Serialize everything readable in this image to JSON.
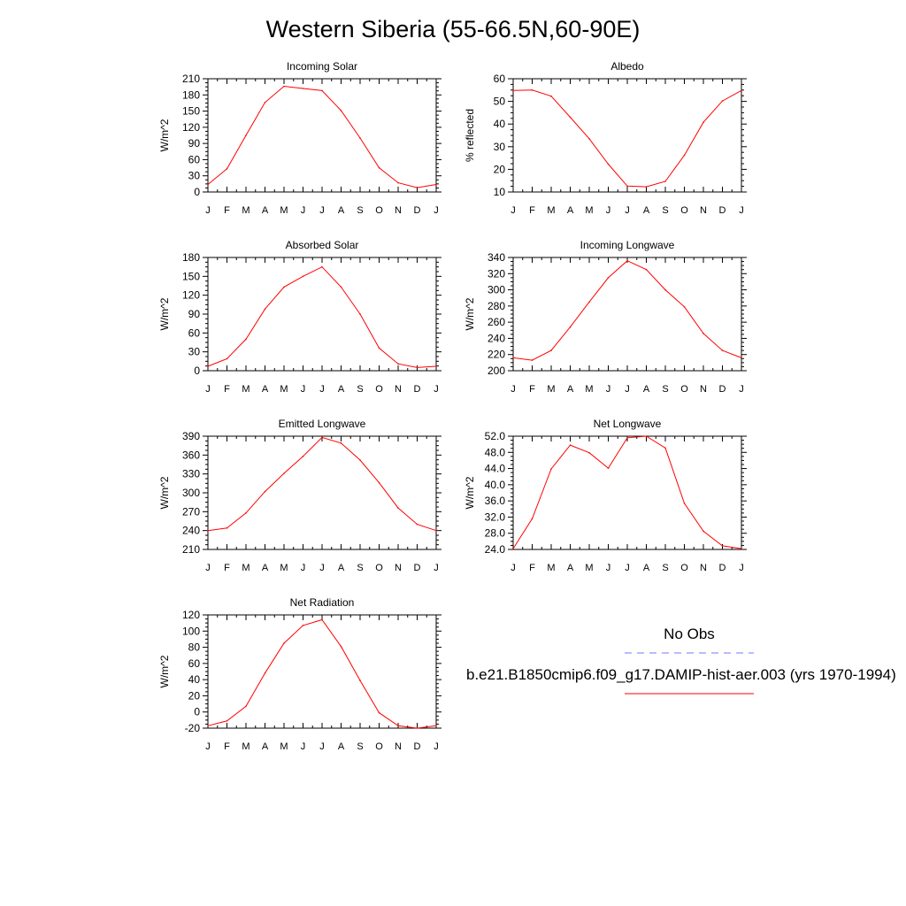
{
  "title": "Western Siberia (55-66.5N,60-90E)",
  "legend": {
    "obs_label": "No Obs",
    "obs_color": "#7777ff",
    "model_label": "b.e21.B1850cmip6.f09_g17.DAMIP-hist-aer.003 (yrs 1970-1994)",
    "model_color": "#ff0000"
  },
  "chart_data": [
    {
      "type": "line",
      "title": "Incoming Solar",
      "ylabel": "W/m^2",
      "x": [
        "J",
        "F",
        "M",
        "A",
        "M",
        "J",
        "J",
        "A",
        "S",
        "O",
        "N",
        "D",
        "J"
      ],
      "ylim": [
        0,
        210
      ],
      "yticks": [
        "0",
        "30",
        "60",
        "90",
        "120",
        "150",
        "180",
        "210"
      ],
      "series": [
        {
          "values": [
            14,
            43,
            105,
            166,
            196,
            192,
            188,
            151,
            100,
            45,
            17,
            8,
            14
          ]
        }
      ]
    },
    {
      "type": "line",
      "title": "Albedo",
      "ylabel": "% reflected",
      "x": [
        "J",
        "F",
        "M",
        "A",
        "M",
        "J",
        "J",
        "A",
        "S",
        "O",
        "N",
        "D",
        "J"
      ],
      "ylim": [
        10,
        60
      ],
      "yticks": [
        "10",
        "20",
        "30",
        "40",
        "50",
        "60"
      ],
      "series": [
        {
          "values": [
            54.8,
            55,
            52.3,
            43,
            33.5,
            22.3,
            12.6,
            12.3,
            14.7,
            26.2,
            40.8,
            50.2,
            54.8
          ]
        }
      ]
    },
    {
      "type": "line",
      "title": "Absorbed Solar",
      "ylabel": "W/m^2",
      "x": [
        "J",
        "F",
        "M",
        "A",
        "M",
        "J",
        "J",
        "A",
        "S",
        "O",
        "N",
        "D",
        "J"
      ],
      "ylim": [
        0,
        180
      ],
      "yticks": [
        "0",
        "30",
        "60",
        "90",
        "120",
        "150",
        "180"
      ],
      "series": [
        {
          "values": [
            7,
            19,
            50,
            98,
            133,
            150,
            165,
            133,
            90,
            36,
            11,
            5,
            7
          ]
        }
      ]
    },
    {
      "type": "line",
      "title": "Incoming Longwave",
      "ylabel": "W/m^2",
      "x": [
        "J",
        "F",
        "M",
        "A",
        "M",
        "J",
        "J",
        "A",
        "S",
        "O",
        "N",
        "D",
        "J"
      ],
      "ylim": [
        200,
        340
      ],
      "yticks": [
        "200",
        "220",
        "240",
        "260",
        "280",
        "300",
        "320",
        "340"
      ],
      "series": [
        {
          "values": [
            216,
            213,
            225,
            254,
            285,
            315,
            336,
            325,
            300,
            279,
            246,
            225,
            216
          ]
        }
      ]
    },
    {
      "type": "line",
      "title": "Emitted Longwave",
      "ylabel": "W/m^2",
      "x": [
        "J",
        "F",
        "M",
        "A",
        "M",
        "J",
        "J",
        "A",
        "S",
        "O",
        "N",
        "D",
        "J"
      ],
      "ylim": [
        210,
        390
      ],
      "yticks": [
        "210",
        "240",
        "270",
        "300",
        "330",
        "360",
        "390"
      ],
      "series": [
        {
          "values": [
            240,
            244,
            268,
            302,
            331,
            358,
            388,
            379,
            352,
            316,
            276,
            250,
            240
          ]
        }
      ]
    },
    {
      "type": "line",
      "title": "Net Longwave",
      "ylabel": "W/m^2",
      "x": [
        "J",
        "F",
        "M",
        "A",
        "M",
        "J",
        "J",
        "A",
        "S",
        "O",
        "N",
        "D",
        "J"
      ],
      "ylim": [
        24,
        52
      ],
      "yticks": [
        "24.0",
        "28.0",
        "32.0",
        "36.0",
        "40.0",
        "44.0",
        "48.0",
        "52.0"
      ],
      "series": [
        {
          "values": [
            24.2,
            31.6,
            43.9,
            49.8,
            47.9,
            44.1,
            51.6,
            52.0,
            49.1,
            35.4,
            28.5,
            24.9,
            24.2
          ]
        }
      ]
    },
    {
      "type": "line",
      "title": "Net Radiation",
      "ylabel": "W/m^2",
      "x": [
        "J",
        "F",
        "M",
        "A",
        "M",
        "J",
        "J",
        "A",
        "S",
        "O",
        "N",
        "D",
        "J"
      ],
      "ylim": [
        -20,
        120
      ],
      "yticks": [
        "-20",
        "0",
        "20",
        "40",
        "60",
        "80",
        "100",
        "120"
      ],
      "series": [
        {
          "values": [
            -17,
            -11,
            7,
            48,
            85,
            107,
            114,
            81,
            39,
            -1,
            -17,
            -20,
            -17
          ]
        }
      ]
    }
  ]
}
